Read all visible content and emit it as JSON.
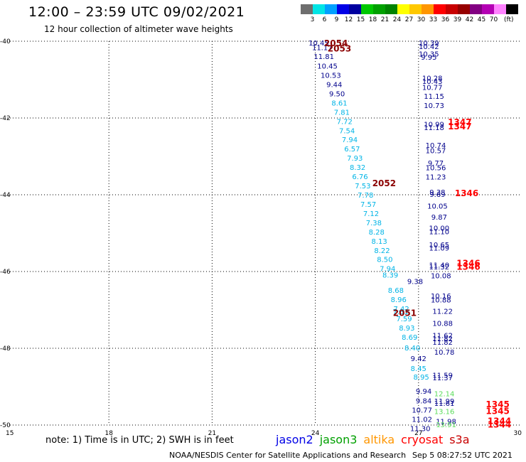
{
  "title": "12:00 – 23:59 UTC 09/02/2021",
  "subtitle": "12 hour collection of altimeter wave heights",
  "colorbar": {
    "colors": [
      "#6e6e6e",
      "#00e5e5",
      "#00a0ff",
      "#0000e6",
      "#0000a0",
      "#00c800",
      "#00a000",
      "#008200",
      "#ffff00",
      "#ffc800",
      "#ff9600",
      "#ff0000",
      "#c80000",
      "#960000",
      "#820082",
      "#b400b4",
      "#ff82ff",
      "#000000"
    ],
    "labels": [
      "3",
      "6",
      "9",
      "12",
      "15",
      "18",
      "21",
      "24",
      "27",
      "30",
      "33",
      "36",
      "39",
      "42",
      "45",
      "70"
    ],
    "unit": "(ft)"
  },
  "note": "note: 1) Time is in UTC; 2) SWH is in feet",
  "satellites": [
    {
      "name": "jason2",
      "color": "#0000e6"
    },
    {
      "name": "jason3",
      "color": "#00a000"
    },
    {
      "name": "altika",
      "color": "#ff9600"
    },
    {
      "name": "cryosat",
      "color": "#ff0000"
    },
    {
      "name": "s3a",
      "color": "#c80000"
    }
  ],
  "footer": {
    "credit": "NOAA/NESDIS Center for Satellite Applications and Research",
    "timestamp": "Sep  5 08:27:52 UTC 2021"
  },
  "chart_data": {
    "type": "scatter",
    "xlim": [
      15,
      30
    ],
    "ylim": [
      -50,
      -40
    ],
    "xticks": [
      "15",
      "18",
      "21",
      "24",
      "27",
      "30"
    ],
    "yticks": [
      "-40",
      "-42",
      "-44",
      "-46",
      "-48",
      "-50"
    ],
    "grid": true,
    "series": [
      {
        "color": "#00008b",
        "points": [
          {
            "x": 24.1,
            "y": -40.04,
            "label": "10.45"
          },
          {
            "x": 24.2,
            "y": -40.16,
            "label": "11.17"
          },
          {
            "x": 24.25,
            "y": -40.39,
            "label": "11.81"
          },
          {
            "x": 24.35,
            "y": -40.64,
            "label": "10.45"
          },
          {
            "x": 24.45,
            "y": -40.88,
            "label": "10.53"
          },
          {
            "x": 24.55,
            "y": -41.12,
            "label": "9.44"
          },
          {
            "x": 24.63,
            "y": -41.36,
            "label": "9.50"
          },
          {
            "x": 27.3,
            "y": -40.04,
            "label": "10.39"
          },
          {
            "x": 27.3,
            "y": -40.13,
            "label": "10.42"
          },
          {
            "x": 27.3,
            "y": -40.32,
            "label": "10.35"
          },
          {
            "x": 27.3,
            "y": -40.41,
            "label": "9.95"
          },
          {
            "x": 27.4,
            "y": -40.95,
            "label": "10.28"
          },
          {
            "x": 27.4,
            "y": -41.04,
            "label": "10.43"
          },
          {
            "x": 27.4,
            "y": -41.19,
            "label": "10.77"
          },
          {
            "x": 27.45,
            "y": -41.43,
            "label": "11.15"
          },
          {
            "x": 27.45,
            "y": -41.67,
            "label": "10.73"
          },
          {
            "x": 27.45,
            "y": -42.16,
            "label": "10.99"
          },
          {
            "x": 27.45,
            "y": -42.24,
            "label": "11.18"
          },
          {
            "x": 27.5,
            "y": -42.7,
            "label": "10.74"
          },
          {
            "x": 27.5,
            "y": -42.84,
            "label": "10.57"
          },
          {
            "x": 27.5,
            "y": -43.17,
            "label": "9.77"
          },
          {
            "x": 27.5,
            "y": -43.29,
            "label": "10.56"
          },
          {
            "x": 27.5,
            "y": -43.53,
            "label": "11.23"
          },
          {
            "x": 27.55,
            "y": -43.93,
            "label": "9.38"
          },
          {
            "x": 27.55,
            "y": -43.98,
            "label": "9.69"
          },
          {
            "x": 27.55,
            "y": -44.29,
            "label": "10.05"
          },
          {
            "x": 27.6,
            "y": -44.57,
            "label": "9.87"
          },
          {
            "x": 27.6,
            "y": -44.86,
            "label": "10.00"
          },
          {
            "x": 27.6,
            "y": -44.95,
            "label": "11.10"
          },
          {
            "x": 27.6,
            "y": -45.3,
            "label": "10.65"
          },
          {
            "x": 27.6,
            "y": -45.38,
            "label": "11.09"
          },
          {
            "x": 27.6,
            "y": -45.82,
            "label": "11.40"
          },
          {
            "x": 27.6,
            "y": -45.87,
            "label": "11.32"
          },
          {
            "x": 27.65,
            "y": -46.1,
            "label": "10.08"
          },
          {
            "x": 27.65,
            "y": -46.63,
            "label": "10.16"
          },
          {
            "x": 27.65,
            "y": -46.73,
            "label": "10.88"
          },
          {
            "x": 27.7,
            "y": -47.03,
            "label": "11.22"
          },
          {
            "x": 27.7,
            "y": -47.34,
            "label": "10.88"
          },
          {
            "x": 27.7,
            "y": -47.66,
            "label": "11.62"
          },
          {
            "x": 27.7,
            "y": -47.74,
            "label": "11.82"
          },
          {
            "x": 27.7,
            "y": -47.83,
            "label": "11.82"
          },
          {
            "x": 27.75,
            "y": -48.09,
            "label": "10.78"
          },
          {
            "x": 27.7,
            "y": -48.69,
            "label": "11.59"
          },
          {
            "x": 27.7,
            "y": -48.76,
            "label": "11.37"
          },
          {
            "x": 27.75,
            "y": -49.37,
            "label": "11.99"
          },
          {
            "x": 27.75,
            "y": -49.43,
            "label": "11.61"
          },
          {
            "x": 27.8,
            "y": -49.9,
            "label": "11.98"
          },
          {
            "x": 27.15,
            "y": -49.11,
            "label": "9.94"
          },
          {
            "x": 27.15,
            "y": -49.36,
            "label": "9.84"
          },
          {
            "x": 27.1,
            "y": -49.6,
            "label": "10.77"
          },
          {
            "x": 27.1,
            "y": -49.84,
            "label": "11.02"
          },
          {
            "x": 27.05,
            "y": -50.08,
            "label": "11.30"
          },
          {
            "x": 27.0,
            "y": -48.26,
            "label": "9.42"
          },
          {
            "x": 26.9,
            "y": -46.25,
            "label": "9.38"
          }
        ]
      },
      {
        "color": "#00b4e6",
        "points": [
          {
            "x": 24.7,
            "y": -41.6,
            "label": "8.61"
          },
          {
            "x": 24.77,
            "y": -41.84,
            "label": "7.81"
          },
          {
            "x": 24.85,
            "y": -42.08,
            "label": "7.72"
          },
          {
            "x": 24.92,
            "y": -42.32,
            "label": "7.54"
          },
          {
            "x": 25.0,
            "y": -42.56,
            "label": "7.94"
          },
          {
            "x": 25.07,
            "y": -42.8,
            "label": "6.57"
          },
          {
            "x": 25.15,
            "y": -43.04,
            "label": "7.93"
          },
          {
            "x": 25.23,
            "y": -43.28,
            "label": "8.32"
          },
          {
            "x": 25.3,
            "y": -43.52,
            "label": "6.76"
          },
          {
            "x": 25.38,
            "y": -43.76,
            "label": "7.53"
          },
          {
            "x": 25.46,
            "y": -44.0,
            "label": "7.78"
          },
          {
            "x": 25.54,
            "y": -44.24,
            "label": "7.57"
          },
          {
            "x": 25.62,
            "y": -44.48,
            "label": "7.12"
          },
          {
            "x": 25.7,
            "y": -44.72,
            "label": "7.38"
          },
          {
            "x": 25.78,
            "y": -44.96,
            "label": "8.28"
          },
          {
            "x": 25.86,
            "y": -45.2,
            "label": "8.13"
          },
          {
            "x": 25.94,
            "y": -45.44,
            "label": "8.22"
          },
          {
            "x": 26.02,
            "y": -45.68,
            "label": "8.50"
          },
          {
            "x": 26.1,
            "y": -45.92,
            "label": "7.94"
          },
          {
            "x": 26.18,
            "y": -46.08,
            "label": "8.39"
          },
          {
            "x": 26.34,
            "y": -46.48,
            "label": "8.68"
          },
          {
            "x": 26.42,
            "y": -46.72,
            "label": "8.96"
          },
          {
            "x": 26.5,
            "y": -46.96,
            "label": "7.42"
          },
          {
            "x": 26.48,
            "y": -47.04,
            "label": "7.31"
          },
          {
            "x": 26.58,
            "y": -47.22,
            "label": "7.59"
          },
          {
            "x": 26.66,
            "y": -47.46,
            "label": "8.93"
          },
          {
            "x": 26.74,
            "y": -47.7,
            "label": "8.69"
          },
          {
            "x": 26.82,
            "y": -47.98,
            "label": "8.40"
          },
          {
            "x": 27.0,
            "y": -48.52,
            "label": "8.45"
          },
          {
            "x": 27.08,
            "y": -48.74,
            "label": "8.95"
          }
        ]
      },
      {
        "color": "#5adc5a",
        "points": [
          {
            "x": 27.75,
            "y": -49.18,
            "label": "12.14"
          },
          {
            "x": 27.75,
            "y": -49.64,
            "label": "13.16"
          },
          {
            "x": 27.8,
            "y": -49.98,
            "label": "13.91"
          }
        ]
      },
      {
        "color": "#ff0000",
        "points": [
          {
            "x": 28.2,
            "y": -42.11,
            "label": "1347"
          },
          {
            "x": 28.2,
            "y": -42.22,
            "label": "1347"
          },
          {
            "x": 28.4,
            "y": -43.96,
            "label": "1346"
          },
          {
            "x": 28.45,
            "y": -45.79,
            "label": "1346"
          },
          {
            "x": 28.45,
            "y": -45.88,
            "label": "1346"
          },
          {
            "x": 29.3,
            "y": -49.46,
            "label": "1345"
          },
          {
            "x": 29.3,
            "y": -49.64,
            "label": "1345"
          },
          {
            "x": 29.35,
            "y": -49.9,
            "label": "1344"
          },
          {
            "x": 29.35,
            "y": -49.99,
            "label": "1344"
          }
        ]
      },
      {
        "color": "#8b0000",
        "points": [
          {
            "x": 24.6,
            "y": -40.06,
            "label": "2054"
          },
          {
            "x": 24.7,
            "y": -40.19,
            "label": "2053"
          },
          {
            "x": 26.0,
            "y": -43.7,
            "label": "2052"
          },
          {
            "x": 26.6,
            "y": -47.08,
            "label": "2051"
          }
        ]
      }
    ]
  }
}
